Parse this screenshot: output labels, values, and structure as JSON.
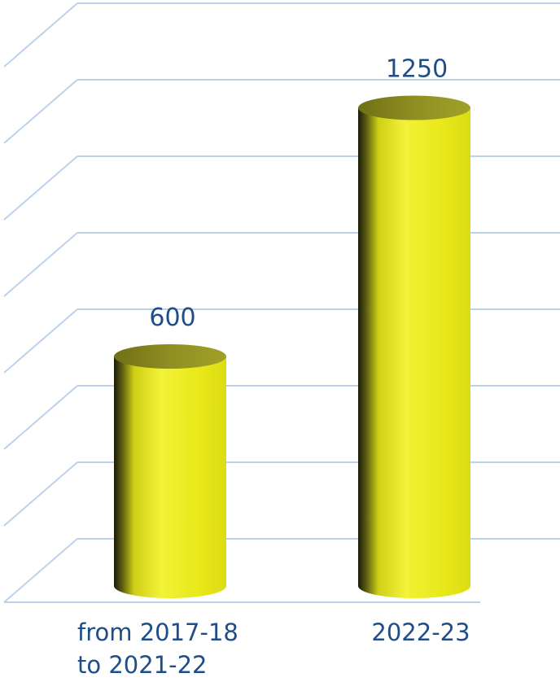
{
  "chart_data": {
    "type": "bar",
    "categories": [
      "from 2017-18\nto 2021-22",
      "2022-23"
    ],
    "values": [
      600,
      1250
    ],
    "ylim": [
      0,
      1400
    ],
    "grid": true,
    "colors": {
      "bar": "#e8e81a",
      "bar_highlight": "#f2f238",
      "bar_shadow": "#1a1a08",
      "bar_top": "#8a8a1c",
      "grid": "#bcd2ea",
      "text": "#1f4d87"
    }
  }
}
